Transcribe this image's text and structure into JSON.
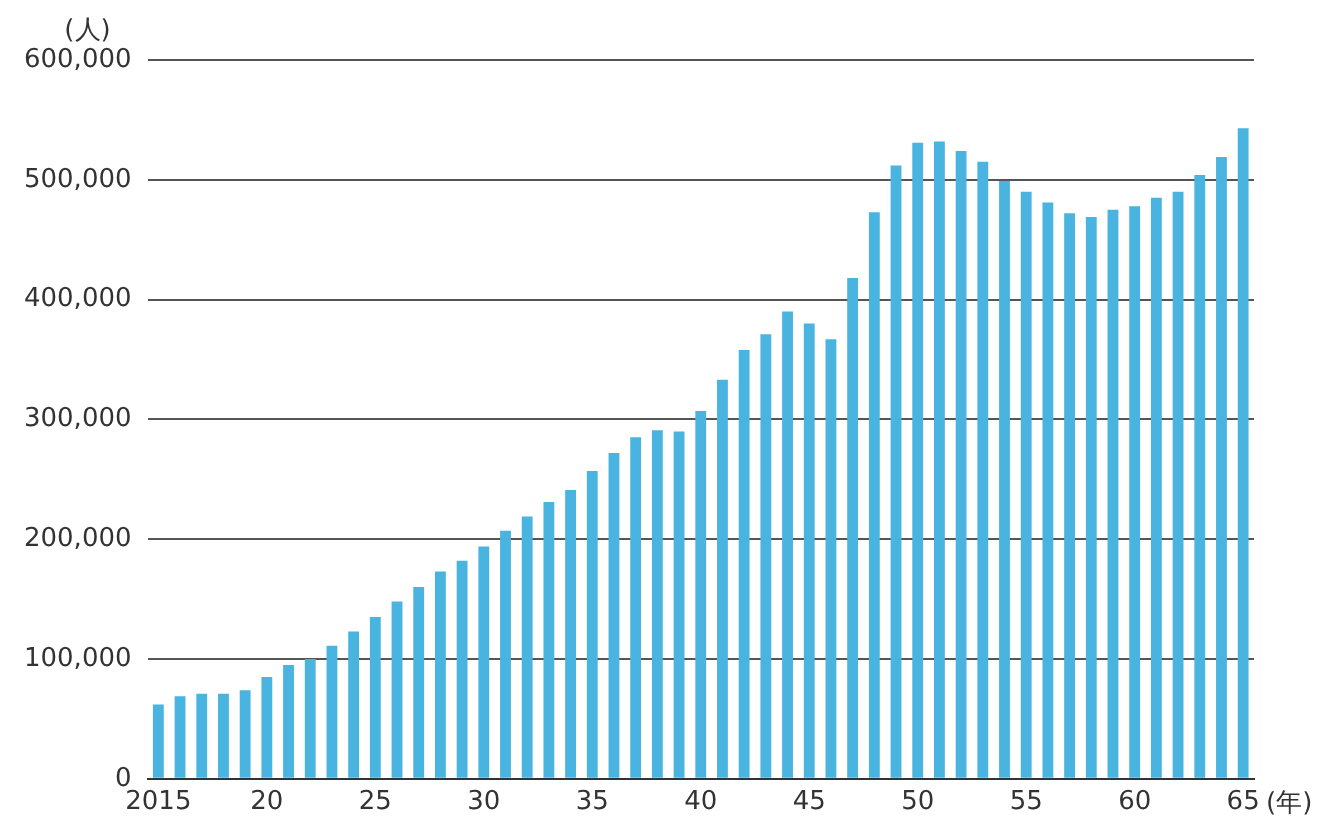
{
  "chart_data": {
    "type": "bar",
    "ylabel": "(人)",
    "xlabel": "(年)",
    "categories": [
      "2015",
      null,
      null,
      null,
      null,
      "20",
      null,
      null,
      null,
      null,
      "25",
      null,
      null,
      null,
      null,
      "30",
      null,
      null,
      null,
      null,
      "35",
      null,
      null,
      null,
      null,
      "40",
      null,
      null,
      null,
      null,
      "45",
      null,
      null,
      null,
      null,
      "50",
      null,
      null,
      null,
      null,
      "55",
      null,
      null,
      null,
      null,
      "60",
      null,
      null,
      null,
      null,
      "65"
    ],
    "values": [
      62000,
      69000,
      71000,
      71000,
      74000,
      85000,
      95000,
      100000,
      111000,
      123000,
      135000,
      148000,
      160000,
      173000,
      182000,
      194000,
      207000,
      219000,
      231000,
      241000,
      257000,
      272000,
      285000,
      291000,
      290000,
      307000,
      333000,
      358000,
      371000,
      390000,
      380000,
      367000,
      418000,
      473000,
      512000,
      531000,
      532000,
      524000,
      515000,
      499000,
      490000,
      481000,
      472000,
      469000,
      475000,
      478000,
      485000,
      490000,
      504000,
      519000,
      543000
    ],
    "color": "#4ab4e0",
    "ylim": [
      0,
      600000
    ],
    "yticks": [
      0,
      {
        "value": 100000,
        "label": "100,000"
      },
      {
        "value": 200000,
        "label": "200,000"
      },
      {
        "value": 300000,
        "label": "300,000"
      },
      {
        "value": 400000,
        "label": "400,000"
      },
      {
        "value": 500000,
        "label": "500,000"
      },
      {
        "value": 600000,
        "label": "600,000"
      }
    ],
    "grid": "y"
  }
}
